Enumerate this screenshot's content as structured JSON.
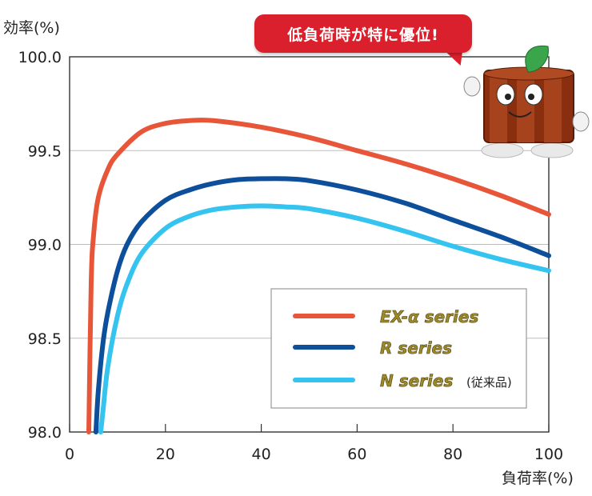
{
  "chart_data": {
    "type": "line",
    "ylabel": "効率(%)",
    "xlabel": "負荷率(%)",
    "xlim": [
      0,
      100
    ],
    "ylim": [
      98.0,
      100.0
    ],
    "xticks": [
      "0",
      "20",
      "40",
      "60",
      "80",
      "100"
    ],
    "yticks": [
      "98.0",
      "98.5",
      "99.0",
      "99.5",
      "100.0"
    ],
    "grid": "horizontal",
    "legend_position": "bottom-right",
    "series": [
      {
        "name": "EX-α series",
        "color": "#e8563a",
        "x": [
          4,
          4.5,
          5,
          6,
          8,
          10,
          15,
          20,
          25,
          30,
          40,
          50,
          60,
          70,
          80,
          90,
          100
        ],
        "y": [
          98.0,
          98.8,
          99.05,
          99.25,
          99.4,
          99.48,
          99.6,
          99.645,
          99.66,
          99.66,
          99.625,
          99.57,
          99.5,
          99.43,
          99.35,
          99.26,
          99.16
        ]
      },
      {
        "name": "R series",
        "color": "#0d4f9a",
        "x": [
          5.5,
          6,
          7,
          8,
          10,
          12,
          15,
          20,
          25,
          30,
          35,
          40,
          45,
          50,
          60,
          70,
          80,
          90,
          100
        ],
        "y": [
          98.0,
          98.22,
          98.48,
          98.64,
          98.86,
          99.0,
          99.12,
          99.235,
          99.29,
          99.325,
          99.345,
          99.35,
          99.35,
          99.34,
          99.29,
          99.22,
          99.13,
          99.04,
          98.94
        ]
      },
      {
        "name": "N series",
        "color": "#35c3ef",
        "x": [
          6.5,
          7,
          8,
          10,
          12,
          15,
          20,
          25,
          30,
          35,
          40,
          45,
          50,
          60,
          70,
          80,
          90,
          100
        ],
        "y": [
          98.0,
          98.12,
          98.35,
          98.62,
          98.79,
          98.95,
          99.085,
          99.15,
          99.185,
          99.2,
          99.205,
          99.2,
          99.19,
          99.14,
          99.07,
          98.99,
          98.92,
          98.86
        ]
      }
    ],
    "legend_note": "(従来品)",
    "callout": "低負荷時が特に優位!"
  }
}
